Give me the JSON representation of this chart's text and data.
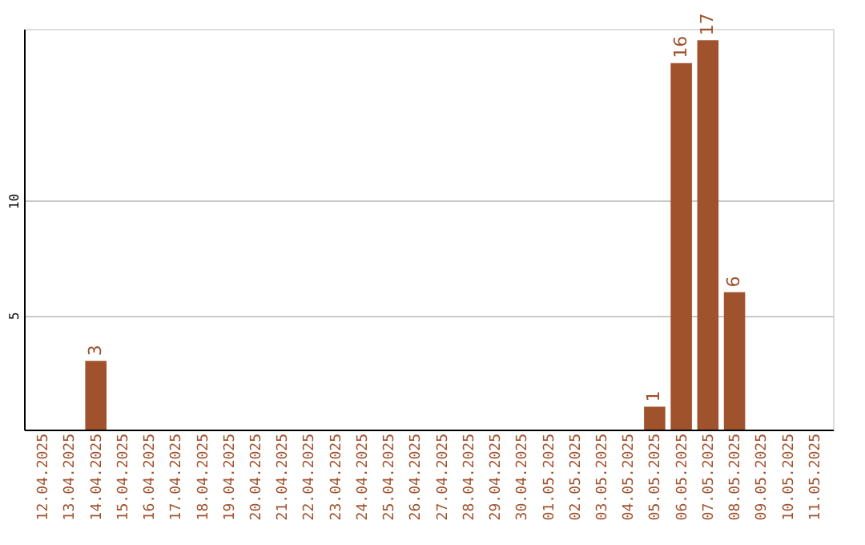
{
  "chart_data": {
    "type": "bar",
    "categories": [
      "12.04.2025",
      "13.04.2025",
      "14.04.2025",
      "15.04.2025",
      "16.04.2025",
      "17.04.2025",
      "18.04.2025",
      "19.04.2025",
      "20.04.2025",
      "21.04.2025",
      "22.04.2025",
      "23.04.2025",
      "24.04.2025",
      "25.04.2025",
      "26.04.2025",
      "27.04.2025",
      "28.04.2025",
      "29.04.2025",
      "30.04.2025",
      "01.05.2025",
      "02.05.2025",
      "03.05.2025",
      "04.05.2025",
      "05.05.2025",
      "06.05.2025",
      "07.05.2025",
      "08.05.2025",
      "09.05.2025",
      "10.05.2025",
      "11.05.2025"
    ],
    "values": [
      0,
      0,
      3,
      0,
      0,
      0,
      0,
      0,
      0,
      0,
      0,
      0,
      0,
      0,
      0,
      0,
      0,
      0,
      0,
      0,
      0,
      0,
      0,
      1,
      16,
      17,
      6,
      0,
      0,
      0
    ],
    "value_labels": [
      null,
      null,
      "3",
      null,
      null,
      null,
      null,
      null,
      null,
      null,
      null,
      null,
      null,
      null,
      null,
      null,
      null,
      null,
      null,
      null,
      null,
      null,
      null,
      "1",
      "16",
      "17",
      "6",
      null,
      null,
      null
    ],
    "color": "#a0522d",
    "ylim": [
      0,
      17.5
    ],
    "yticks": [
      5,
      10
    ],
    "grid": "y"
  }
}
